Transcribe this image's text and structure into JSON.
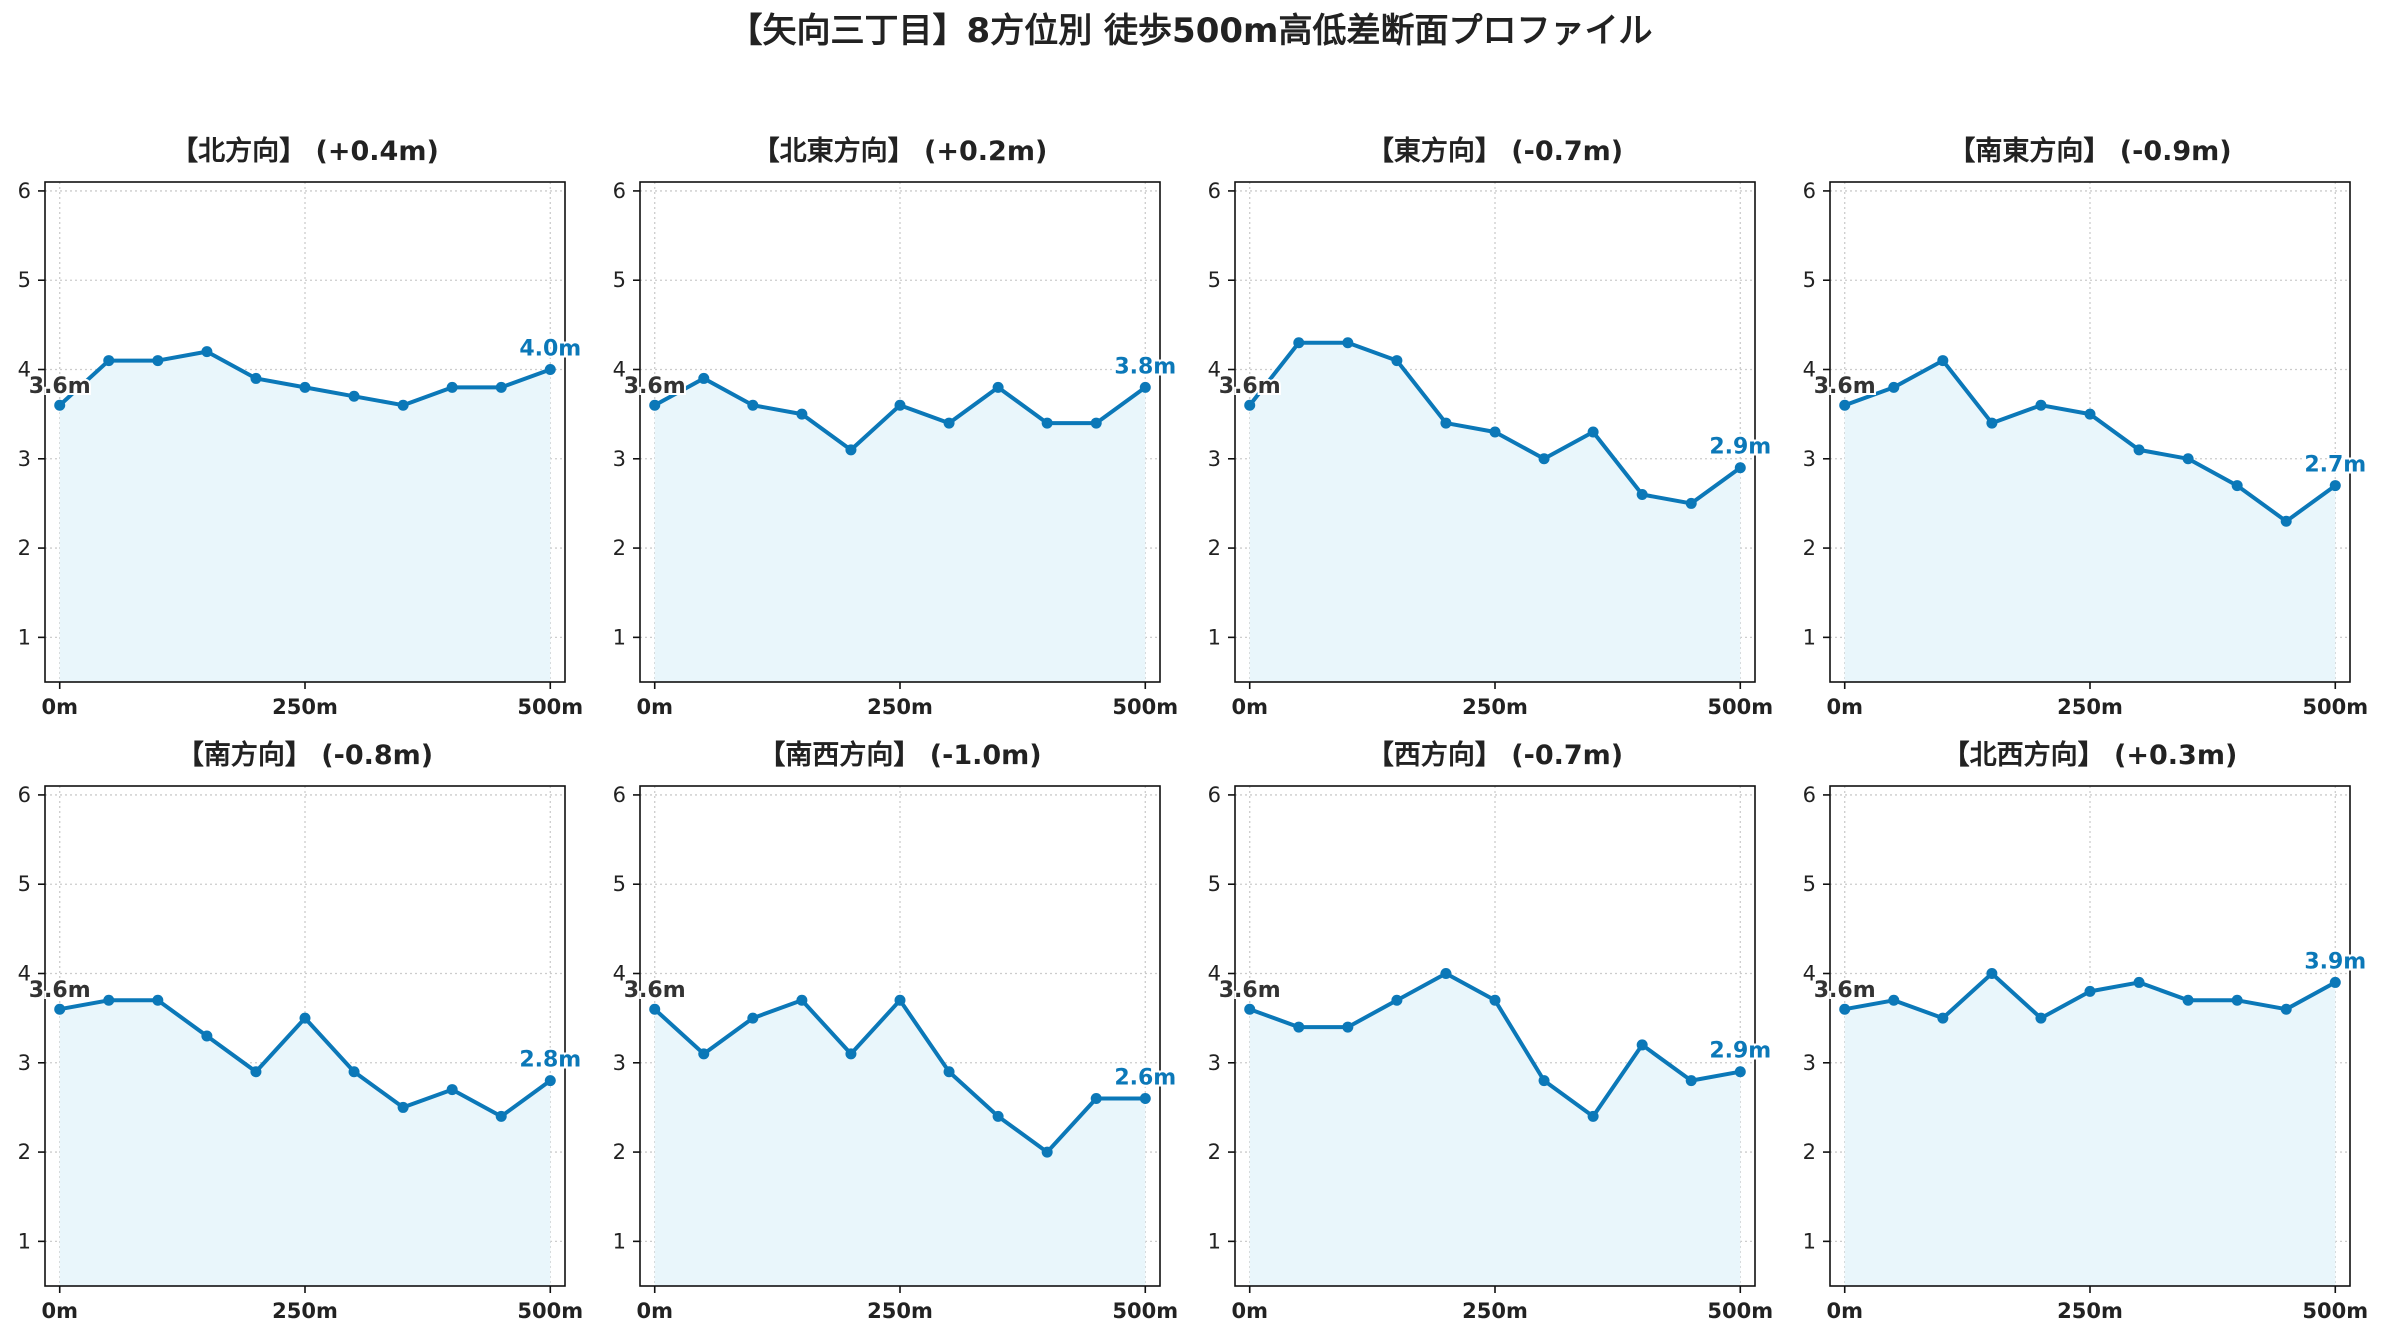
{
  "figure_title": "【矢向三丁目】8方位別 徒歩500m高低差断面プロファイル",
  "colors": {
    "line": "#0b78b8",
    "fill": "#e9f6fb",
    "grid": "#cccccc",
    "start_label": "#333333",
    "end_label": "#0b78b8"
  },
  "chart_data": [
    {
      "type": "area",
      "title": "【北方向】 (+0.4m)",
      "x": [
        0,
        50,
        100,
        150,
        200,
        250,
        300,
        350,
        400,
        450,
        500
      ],
      "series": [
        {
          "values": [
            3.6,
            4.1,
            4.1,
            4.2,
            3.9,
            3.8,
            3.7,
            3.6,
            3.8,
            3.8,
            4.0
          ]
        }
      ],
      "start_label": "3.6m",
      "end_label": "4.0m"
    },
    {
      "type": "area",
      "title": "【北東方向】 (+0.2m)",
      "x": [
        0,
        50,
        100,
        150,
        200,
        250,
        300,
        350,
        400,
        450,
        500
      ],
      "series": [
        {
          "values": [
            3.6,
            3.9,
            3.6,
            3.5,
            3.1,
            3.6,
            3.4,
            3.8,
            3.4,
            3.4,
            3.8
          ]
        }
      ],
      "start_label": "3.6m",
      "end_label": "3.8m"
    },
    {
      "type": "area",
      "title": "【東方向】 (-0.7m)",
      "x": [
        0,
        50,
        100,
        150,
        200,
        250,
        300,
        350,
        400,
        450,
        500
      ],
      "series": [
        {
          "values": [
            3.6,
            4.3,
            4.3,
            4.1,
            3.4,
            3.3,
            3.0,
            3.3,
            2.6,
            2.5,
            2.9
          ]
        }
      ],
      "start_label": "3.6m",
      "end_label": "2.9m"
    },
    {
      "type": "area",
      "title": "【南東方向】 (-0.9m)",
      "x": [
        0,
        50,
        100,
        150,
        200,
        250,
        300,
        350,
        400,
        450,
        500
      ],
      "series": [
        {
          "values": [
            3.6,
            3.8,
            4.1,
            3.4,
            3.6,
            3.5,
            3.1,
            3.0,
            2.7,
            2.3,
            2.7
          ]
        }
      ],
      "start_label": "3.6m",
      "end_label": "2.7m"
    },
    {
      "type": "area",
      "title": "【南方向】 (-0.8m)",
      "x": [
        0,
        50,
        100,
        150,
        200,
        250,
        300,
        350,
        400,
        450,
        500
      ],
      "series": [
        {
          "values": [
            3.6,
            3.7,
            3.7,
            3.3,
            2.9,
            3.5,
            2.9,
            2.5,
            2.7,
            2.4,
            2.8
          ]
        }
      ],
      "start_label": "3.6m",
      "end_label": "2.8m"
    },
    {
      "type": "area",
      "title": "【南西方向】 (-1.0m)",
      "x": [
        0,
        50,
        100,
        150,
        200,
        250,
        300,
        350,
        400,
        450,
        500
      ],
      "series": [
        {
          "values": [
            3.6,
            3.1,
            3.5,
            3.7,
            3.1,
            3.7,
            2.9,
            2.4,
            2.0,
            2.6,
            2.6
          ]
        }
      ],
      "start_label": "3.6m",
      "end_label": "2.6m"
    },
    {
      "type": "area",
      "title": "【西方向】 (-0.7m)",
      "x": [
        0,
        50,
        100,
        150,
        200,
        250,
        300,
        350,
        400,
        450,
        500
      ],
      "series": [
        {
          "values": [
            3.6,
            3.4,
            3.4,
            3.7,
            4.0,
            3.7,
            2.8,
            2.4,
            3.2,
            2.8,
            2.9
          ]
        }
      ],
      "start_label": "3.6m",
      "end_label": "2.9m"
    },
    {
      "type": "area",
      "title": "【北西方向】 (+0.3m)",
      "x": [
        0,
        50,
        100,
        150,
        200,
        250,
        300,
        350,
        400,
        450,
        500
      ],
      "series": [
        {
          "values": [
            3.6,
            3.7,
            3.5,
            4.0,
            3.5,
            3.8,
            3.9,
            3.7,
            3.7,
            3.6,
            3.9
          ]
        }
      ],
      "start_label": "3.6m",
      "end_label": "3.9m"
    }
  ],
  "axes": {
    "xlim": [
      -15,
      515
    ],
    "ylim": [
      0.5,
      6.1
    ],
    "x_ticks": [
      0,
      250,
      500
    ],
    "x_tick_labels": [
      "0m",
      "250m",
      "500m"
    ],
    "y_ticks": [
      1,
      2,
      3,
      4,
      5,
      6
    ],
    "y_tick_labels": [
      "1",
      "2",
      "3",
      "4",
      "5",
      "6"
    ],
    "grid": true
  }
}
